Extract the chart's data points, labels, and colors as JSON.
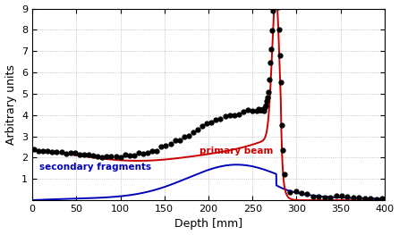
{
  "title": "",
  "xlabel": "Depth [mm]",
  "ylabel": "Arbitrary units",
  "xlim": [
    0,
    400
  ],
  "ylim": [
    0,
    9
  ],
  "yticks": [
    1,
    2,
    3,
    4,
    5,
    6,
    7,
    8,
    9
  ],
  "xticks": [
    0,
    50,
    100,
    150,
    200,
    250,
    300,
    350,
    400
  ],
  "primary_beam_color": "#cc0000",
  "secondary_color": "#0000bb",
  "data_color": "#000000",
  "background_color": "#ffffff",
  "grid_color": "#aaaaaa",
  "label_primary": "primary beam",
  "label_secondary": "secondary fragments",
  "bragg_peak_x": 277.0,
  "bragg_peak_height": 9.0,
  "figsize": [
    4.46,
    2.63
  ],
  "dpi": 100
}
